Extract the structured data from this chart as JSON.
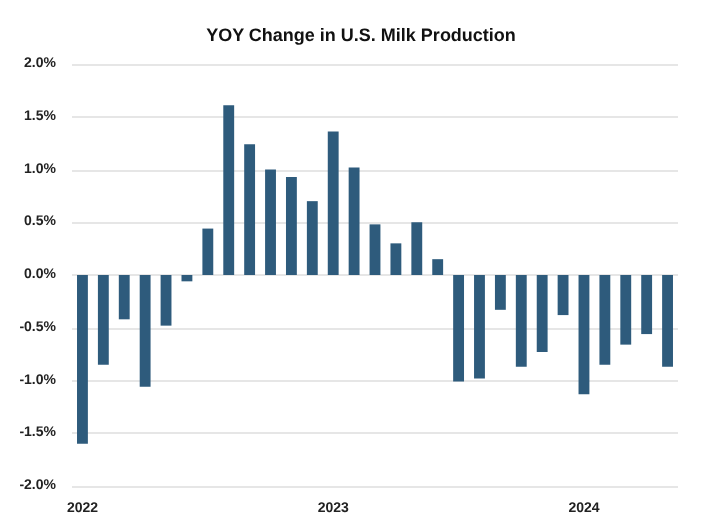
{
  "chart_data": {
    "type": "bar",
    "title": "YOY Change in U.S. Milk Production",
    "categories": [
      "2022",
      null,
      null,
      null,
      null,
      null,
      null,
      null,
      null,
      null,
      null,
      null,
      "2023",
      null,
      null,
      null,
      null,
      null,
      null,
      null,
      null,
      null,
      null,
      null,
      "2024",
      null,
      null,
      null,
      null
    ],
    "values": [
      -1.6,
      -0.85,
      -0.42,
      -1.06,
      -0.48,
      -0.06,
      0.44,
      1.61,
      1.24,
      1.0,
      0.93,
      0.7,
      1.36,
      1.02,
      0.48,
      0.3,
      0.5,
      0.15,
      -1.01,
      -0.98,
      -0.33,
      -0.87,
      -0.73,
      -0.38,
      -1.13,
      -0.85,
      -0.66,
      -0.56,
      -0.87
    ],
    "color": "#2e5b7c",
    "ylim": [
      -2,
      2
    ],
    "yticks": [
      {
        "value": -2,
        "label": "-2.0%"
      },
      {
        "value": -1.5,
        "label": "-1.5%"
      },
      {
        "value": -1,
        "label": "-1.0%"
      },
      {
        "value": -0.5,
        "label": "-0.5%"
      },
      {
        "value": 0,
        "label": "0.0%"
      },
      {
        "value": 0.5,
        "label": "0.5%"
      },
      {
        "value": 1,
        "label": "1.0%"
      },
      {
        "value": 1.5,
        "label": "1.5%"
      },
      {
        "value": 2,
        "label": "2.0%"
      }
    ],
    "grid": "y"
  }
}
